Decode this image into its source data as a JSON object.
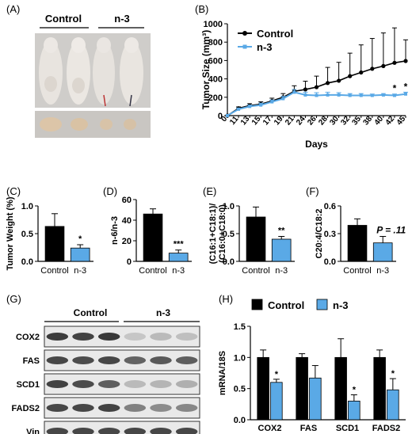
{
  "panels": {
    "A": "(A)",
    "B": "(B)",
    "C": "(C)",
    "D": "(D)",
    "E": "(E)",
    "F": "(F)",
    "G": "(G)",
    "H": "(H)"
  },
  "photo": {
    "group_labels": [
      "Control",
      "n-3"
    ]
  },
  "blot": {
    "group_labels": [
      "Control",
      "n-3"
    ],
    "rows": [
      "COX2",
      "FAS",
      "SCD1",
      "FADS2",
      "Vin"
    ]
  },
  "colors": {
    "control": "#000000",
    "n3": "#5aa9e6"
  },
  "chart_data": [
    {
      "id": "B",
      "type": "line",
      "title": "",
      "xlabel": "Days",
      "ylabel": "Tumor Size (mm³)",
      "x": [
        "0",
        "11",
        "13",
        "15",
        "17",
        "19",
        "21",
        "24",
        "26",
        "28",
        "30",
        "32",
        "35",
        "38",
        "40",
        "42",
        "45"
      ],
      "ylim": [
        0,
        1000
      ],
      "yticks": [
        "0",
        "200",
        "400",
        "600",
        "800",
        "1000"
      ],
      "legend_position": "top-left",
      "series": [
        {
          "name": "Control",
          "values": [
            0,
            80,
            110,
            125,
            160,
            200,
            265,
            285,
            310,
            355,
            380,
            430,
            470,
            510,
            540,
            575,
            595
          ],
          "errors": [
            0,
            15,
            20,
            25,
            30,
            40,
            60,
            90,
            120,
            170,
            200,
            250,
            300,
            330,
            360,
            380,
            230
          ]
        },
        {
          "name": "n-3",
          "values": [
            0,
            70,
            100,
            115,
            150,
            185,
            255,
            225,
            220,
            225,
            225,
            220,
            220,
            220,
            225,
            220,
            235
          ],
          "errors": [
            0,
            10,
            15,
            20,
            20,
            25,
            30,
            30,
            30,
            30,
            25,
            20,
            20,
            15,
            15,
            15,
            20
          ]
        }
      ],
      "annotations": [
        {
          "x": "42",
          "text": "*"
        },
        {
          "x": "45",
          "text": "*"
        }
      ]
    },
    {
      "id": "C",
      "type": "bar",
      "ylabel": "Tumor Weight (%)",
      "categories": [
        "Control",
        "n-3"
      ],
      "values": [
        0.63,
        0.24
      ],
      "errors": [
        0.23,
        0.06
      ],
      "ylim": [
        0,
        1.0
      ],
      "yticks": [
        "0.0",
        "0.5",
        "1.0"
      ],
      "annotations": [
        {
          "category": "n-3",
          "text": "*"
        }
      ]
    },
    {
      "id": "D",
      "type": "bar",
      "ylabel": "n-6/n-3",
      "categories": [
        "Control",
        "n-3"
      ],
      "values": [
        46,
        8
      ],
      "errors": [
        5,
        3
      ],
      "ylim": [
        0,
        60
      ],
      "yticks": [
        "0",
        "20",
        "40",
        "60"
      ],
      "annotations": [
        {
          "category": "n-3",
          "text": "***"
        }
      ]
    },
    {
      "id": "E",
      "type": "bar",
      "ylabel": "(C16:1+C18:1)/(C16:0+C18:0)",
      "categories": [
        "Control",
        "n-3"
      ],
      "values": [
        0.8,
        0.4
      ],
      "errors": [
        0.18,
        0.05
      ],
      "ylim": [
        0,
        1.0
      ],
      "yticks": [
        "0.0",
        "0.5",
        "1.0"
      ],
      "annotations": [
        {
          "category": "n-3",
          "text": "**"
        }
      ]
    },
    {
      "id": "F",
      "type": "bar",
      "ylabel": "C20:4/C18:2",
      "categories": [
        "Control",
        "n-3"
      ],
      "values": [
        0.39,
        0.2
      ],
      "errors": [
        0.07,
        0.07
      ],
      "ylim": [
        0,
        0.6
      ],
      "yticks": [
        "0.0",
        "0.3",
        "0.6"
      ],
      "annotations": [
        {
          "category": "n-3",
          "text": "P = .11"
        }
      ]
    },
    {
      "id": "H",
      "type": "bar",
      "ylabel": "mRNA/18S",
      "categories": [
        "COX2",
        "FAS",
        "SCD1",
        "FADS2"
      ],
      "ylim": [
        0,
        1.5
      ],
      "yticks": [
        "0.0",
        "0.5",
        "1.0",
        "1.5"
      ],
      "legend_position": "top",
      "series": [
        {
          "name": "Control",
          "values": [
            1.0,
            1.0,
            1.0,
            1.0
          ],
          "errors": [
            0.12,
            0.06,
            0.3,
            0.12
          ]
        },
        {
          "name": "n-3",
          "values": [
            0.6,
            0.67,
            0.3,
            0.48
          ],
          "errors": [
            0.05,
            0.2,
            0.1,
            0.18
          ]
        }
      ],
      "annotations": [
        {
          "category": "COX2",
          "text": "*"
        },
        {
          "category": "SCD1",
          "text": "*"
        },
        {
          "category": "FADS2",
          "text": "*"
        }
      ]
    }
  ]
}
